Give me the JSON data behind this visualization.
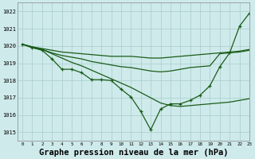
{
  "title": "Graphe pression niveau de la mer (hPa)",
  "bg_color": "#ceeaea",
  "grid_color": "#aacccc",
  "line_color": "#1a5c1a",
  "marker_color": "#1a5c1a",
  "xlim": [
    -0.5,
    23
  ],
  "ylim": [
    1014.5,
    1022.5
  ],
  "yticks": [
    1015,
    1016,
    1017,
    1018,
    1019,
    1020,
    1021,
    1022
  ],
  "xticks": [
    0,
    1,
    2,
    3,
    4,
    5,
    6,
    7,
    8,
    9,
    10,
    11,
    12,
    13,
    14,
    15,
    16,
    17,
    18,
    19,
    20,
    21,
    22,
    23
  ],
  "series": [
    {
      "y": [
        1020.1,
        1019.95,
        1019.85,
        1019.75,
        1019.65,
        1019.6,
        1019.55,
        1019.5,
        1019.45,
        1019.4,
        1019.4,
        1019.4,
        1019.35,
        1019.3,
        1019.3,
        1019.35,
        1019.4,
        1019.45,
        1019.5,
        1019.55,
        1019.6,
        1019.65,
        1019.7,
        1019.8
      ],
      "marker": false,
      "lw": 0.9
    },
    {
      "y": [
        1020.1,
        1019.9,
        1019.8,
        1019.6,
        1019.45,
        1019.35,
        1019.25,
        1019.1,
        1019.0,
        1018.9,
        1018.8,
        1018.75,
        1018.65,
        1018.55,
        1018.5,
        1018.55,
        1018.65,
        1018.75,
        1018.8,
        1018.85,
        1019.55,
        1019.6,
        1019.65,
        1019.75
      ],
      "marker": false,
      "lw": 0.9
    },
    {
      "y": [
        1020.1,
        1019.95,
        1019.8,
        1019.55,
        1019.3,
        1019.05,
        1018.85,
        1018.6,
        1018.35,
        1018.1,
        1017.85,
        1017.6,
        1017.3,
        1017.0,
        1016.7,
        1016.55,
        1016.5,
        1016.55,
        1016.6,
        1016.65,
        1016.7,
        1016.75,
        1016.85,
        1016.95
      ],
      "marker": false,
      "lw": 0.9
    },
    {
      "y": [
        1020.1,
        1019.9,
        1019.75,
        1019.25,
        1018.65,
        1018.65,
        1018.45,
        1018.05,
        1018.05,
        1018.0,
        1017.5,
        1017.05,
        1016.2,
        1015.15,
        1016.35,
        1016.65,
        1016.65,
        1016.85,
        1017.15,
        1017.7,
        1018.8,
        1019.6,
        1021.15,
        1021.9
      ],
      "marker": true,
      "lw": 0.9
    }
  ],
  "title_fontsize": 7.5
}
